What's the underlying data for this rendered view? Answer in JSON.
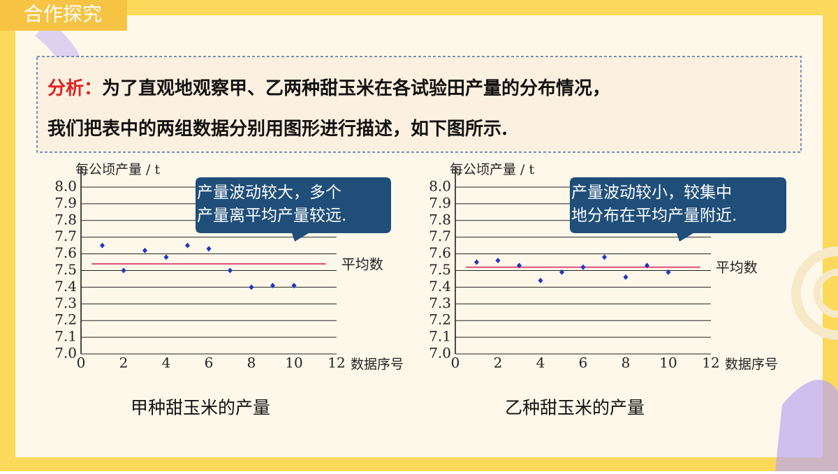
{
  "header": "合作探究",
  "analysis": {
    "label": "分析：",
    "lines": [
      "为了直观地观察甲、乙两种甜玉米在各试验田产量的分布情况，",
      "我们把表中的两组数据分别用图形进行描述，如下图所示."
    ]
  },
  "chart_data": [
    {
      "type": "scatter",
      "title": "甲种甜玉米的产量",
      "y_label": "每公顷产量 / t",
      "x_label": "数据序号",
      "x": [
        1,
        2,
        3,
        4,
        5,
        6,
        7,
        8,
        9,
        10
      ],
      "values": [
        7.65,
        7.5,
        7.62,
        7.58,
        7.65,
        7.63,
        7.5,
        7.4,
        7.41,
        7.41
      ],
      "color": "#1f35c9",
      "mean": 7.54,
      "mean_label": "平均数",
      "mean_color": "#e0507a",
      "annotation": [
        "产量波动较大，多个",
        "产量离平均产量较远."
      ],
      "xlim": [
        0,
        12
      ],
      "xticks": [
        0,
        2,
        4,
        6,
        8,
        10,
        12
      ],
      "ylim": [
        7.0,
        8.0
      ],
      "yticks": [
        {
          "value": 7.0,
          "label": "7.0"
        },
        7.1,
        7.2,
        7.3,
        7.4,
        7.5,
        7.6,
        7.7,
        7.8,
        7.9,
        {
          "value": 8.0,
          "label": "8.0"
        }
      ],
      "grid": true
    },
    {
      "type": "scatter",
      "title": "乙种甜玉米的产量",
      "y_label": "每公顷产量 / t",
      "x_label": "数据序号",
      "x": [
        1,
        2,
        3,
        4,
        5,
        6,
        7,
        8,
        9,
        10
      ],
      "values": [
        7.55,
        7.56,
        7.53,
        7.44,
        7.49,
        7.52,
        7.58,
        7.46,
        7.53,
        7.49
      ],
      "color": "#1f35c9",
      "mean": 7.52,
      "mean_label": "平均数",
      "mean_color": "#e0507a",
      "annotation": [
        "产量波动较小，较集中",
        "地分布在平均产量附近."
      ],
      "xlim": [
        0,
        12
      ],
      "xticks": [
        0,
        2,
        4,
        6,
        8,
        10,
        12
      ],
      "ylim": [
        7.0,
        8.0
      ],
      "yticks": [
        {
          "value": 7.0,
          "label": "7.0"
        },
        7.1,
        7.2,
        7.3,
        7.4,
        7.5,
        7.6,
        7.7,
        7.8,
        7.9,
        {
          "value": 8.0,
          "label": "8.0"
        }
      ],
      "grid": true
    }
  ]
}
